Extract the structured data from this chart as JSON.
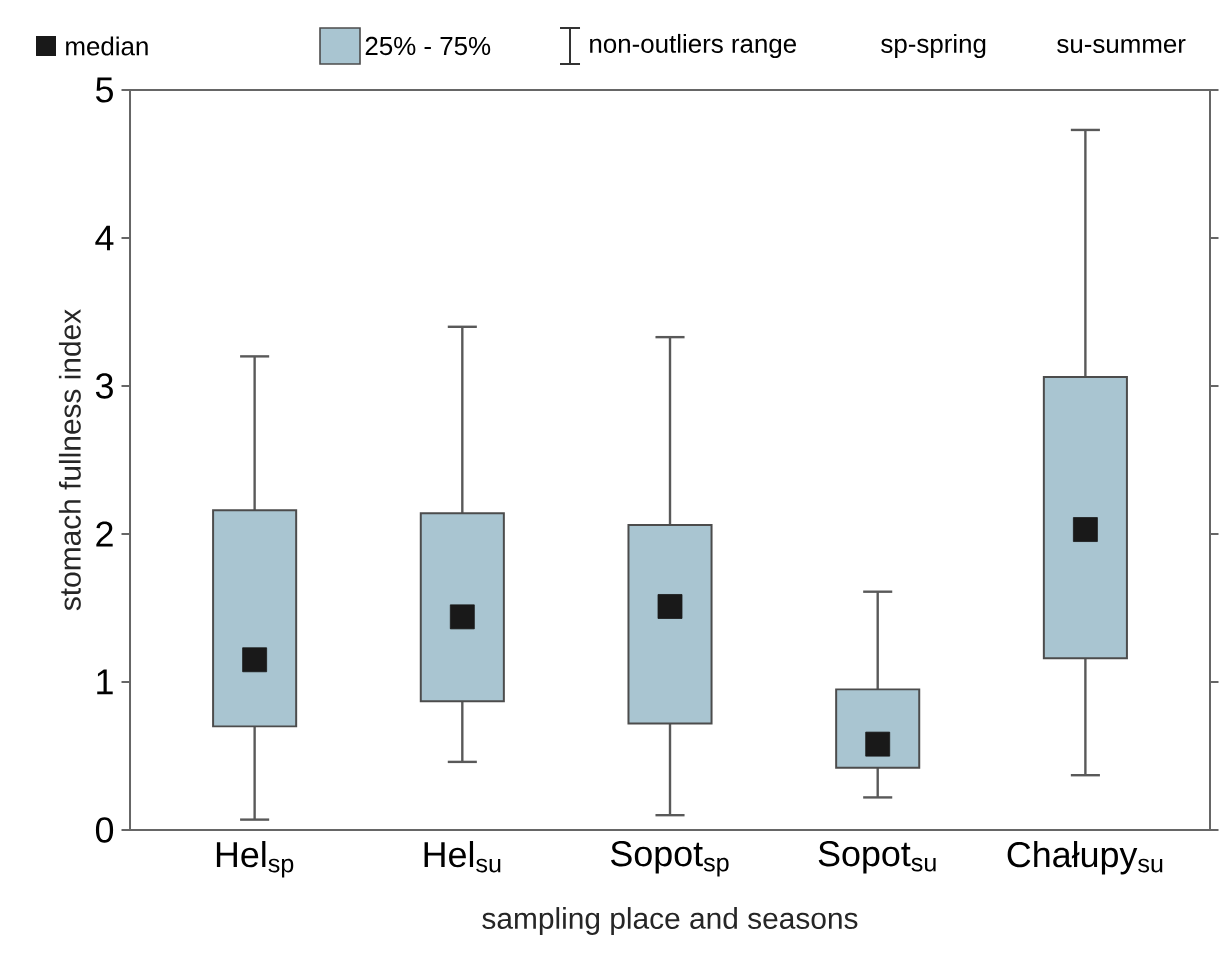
{
  "chart_data": {
    "type": "box",
    "xlabel": "sampling place and seasons",
    "ylabel": "stomach fullness index",
    "categories": [
      "Hel$_{sp}$",
      "Hel$_{su}$",
      "Sopot$_{sp}$",
      "Sopot$_{su}$",
      "Chałupy$_{su}$"
    ],
    "boxes": [
      {
        "low": 0.07,
        "q1": 0.7,
        "median": 1.15,
        "q3": 2.16,
        "high": 3.2
      },
      {
        "low": 0.46,
        "q1": 0.87,
        "median": 1.44,
        "q3": 2.14,
        "high": 3.4
      },
      {
        "low": 0.1,
        "q1": 0.72,
        "median": 1.51,
        "q3": 2.06,
        "high": 3.33
      },
      {
        "low": 0.22,
        "q1": 0.42,
        "median": 0.58,
        "q3": 0.95,
        "high": 1.61
      },
      {
        "low": 0.37,
        "q1": 1.16,
        "median": 2.03,
        "q3": 3.06,
        "high": 4.73
      }
    ],
    "color": "#a9c5d1",
    "ylim": [
      0,
      5
    ],
    "yticks": [
      0,
      1,
      2,
      3,
      4,
      5
    ],
    "marker": "square",
    "annotations": [
      "median",
      "25% - 75%",
      "non-outliers range",
      "sp-spring",
      "su-summer"
    ]
  }
}
